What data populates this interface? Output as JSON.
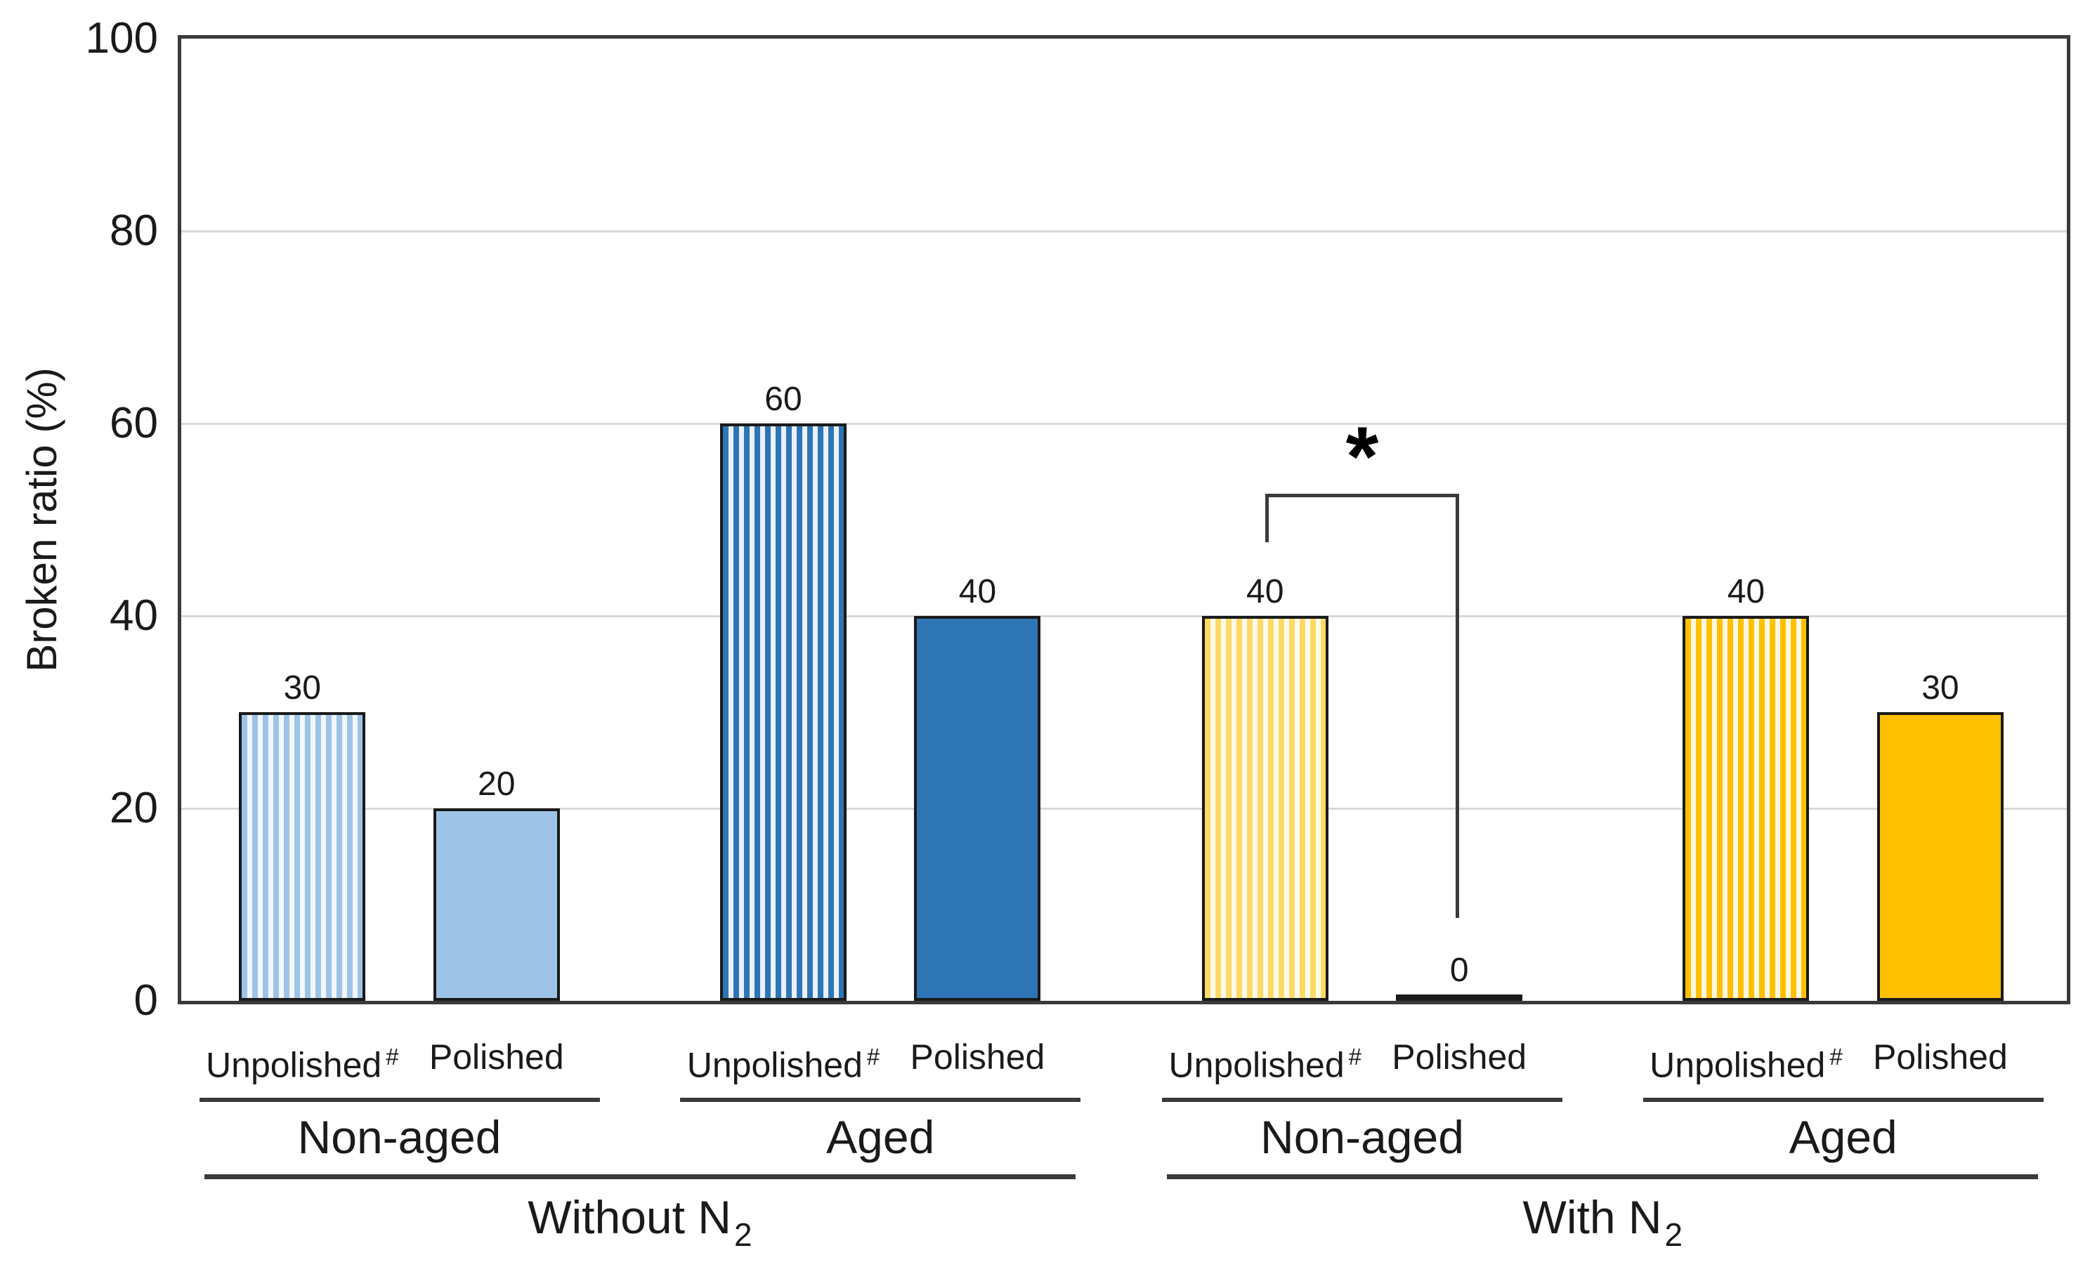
{
  "figure": {
    "background": "#FFFFFF",
    "frame_color": "#3A3A3A",
    "gridline_color": "#D9D9D9",
    "text_color": "#1A1A1A"
  },
  "chart_data": {
    "type": "bar",
    "title": "",
    "xlabel": "",
    "ylabel": "Broken ratio (%)",
    "ylim": [
      0,
      100
    ],
    "yticks": [
      "0",
      "20",
      "40",
      "60",
      "80",
      "100"
    ],
    "grid_values": [
      20,
      40,
      60,
      80
    ],
    "grid": true,
    "legend": false,
    "conditions": [
      {
        "label": "Without N",
        "label_sub": "2",
        "groups": [
          {
            "label": "Non-aged",
            "bars": [
              {
                "category": "Unpolished",
                "category_sup": "#",
                "value": 30,
                "value_label": "30",
                "pattern": "vertical-stripes",
                "color": "#9DC3E6",
                "pattern_bg": "#F2F7FC"
              },
              {
                "category": "Polished",
                "category_sup": "",
                "value": 20,
                "value_label": "20",
                "pattern": "solid",
                "color": "#9DC3E6",
                "pattern_bg": ""
              }
            ]
          },
          {
            "label": "Aged",
            "bars": [
              {
                "category": "Unpolished",
                "category_sup": "#",
                "value": 60,
                "value_label": "60",
                "pattern": "vertical-stripes",
                "color": "#2E75B6",
                "pattern_bg": "#EAF1F9"
              },
              {
                "category": "Polished",
                "category_sup": "",
                "value": 40,
                "value_label": "40",
                "pattern": "solid",
                "color": "#2E75B6",
                "pattern_bg": ""
              }
            ]
          }
        ]
      },
      {
        "label": "With N",
        "label_sub": "2",
        "groups": [
          {
            "label": "Non-aged",
            "bars": [
              {
                "category": "Unpolished",
                "category_sup": "#",
                "value": 40,
                "value_label": "40",
                "pattern": "vertical-stripes",
                "color": "#FFD966",
                "pattern_bg": "#FFFBEB"
              },
              {
                "category": "Polished",
                "category_sup": "",
                "value": 0,
                "value_label": "0",
                "pattern": "solid",
                "color": "#1A1A1A",
                "pattern_bg": ""
              }
            ]
          },
          {
            "label": "Aged",
            "bars": [
              {
                "category": "Unpolished",
                "category_sup": "#",
                "value": 40,
                "value_label": "40",
                "pattern": "vertical-stripes",
                "color": "#FFC000",
                "pattern_bg": "#FFF7E0"
              },
              {
                "category": "Polished",
                "category_sup": "",
                "value": 30,
                "value_label": "30",
                "pattern": "solid",
                "color": "#FFC000",
                "pattern_bg": ""
              }
            ]
          }
        ]
      }
    ],
    "significance": {
      "marker": "*",
      "left_bar_index": 4,
      "right_bar_index": 5,
      "condition": "With N2",
      "group": "Non-aged",
      "between": [
        "Unpolished",
        "Polished"
      ]
    }
  }
}
